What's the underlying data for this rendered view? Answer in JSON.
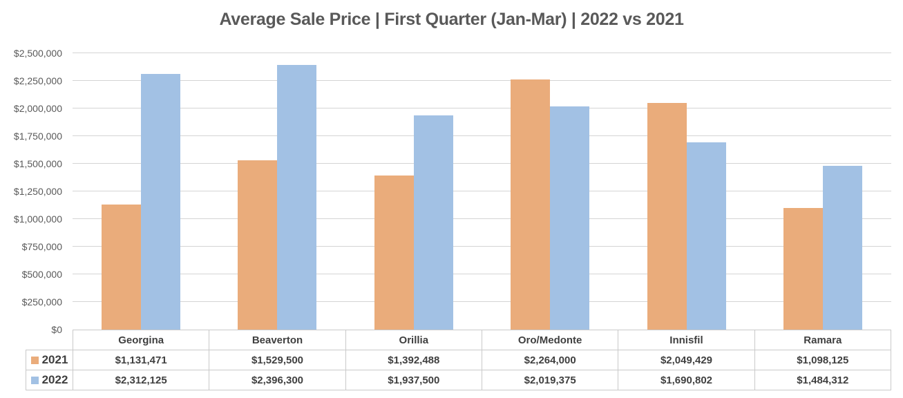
{
  "chart_data": {
    "type": "bar",
    "title": "Average Sale Price | First Quarter (Jan-Mar)  | 2022 vs 2021",
    "categories": [
      "Georgina",
      "Beaverton",
      "Orillia",
      "Oro/Medonte",
      "Innisfil",
      "Ramara"
    ],
    "series": [
      {
        "name": "2021",
        "color": "#EAAC7B",
        "values": [
          1131471,
          1529500,
          1392488,
          2264000,
          2049429,
          1098125
        ],
        "labels": [
          "$1,131,471",
          "$1,529,500",
          "$1,392,488",
          "$2,264,000",
          "$2,049,429",
          "$1,098,125"
        ]
      },
      {
        "name": "2022",
        "color": "#A2C1E4",
        "values": [
          2312125,
          2396300,
          1937500,
          2019375,
          1690802,
          1484312
        ],
        "labels": [
          "$2,312,125",
          "$2,396,300",
          "$1,937,500",
          "$2,019,375",
          "$1,690,802",
          "$1,484,312"
        ]
      }
    ],
    "ylim": [
      0,
      2500000
    ],
    "y_ticks": [
      {
        "value": 0,
        "label": "$0"
      },
      {
        "value": 250000,
        "label": "$250,000"
      },
      {
        "value": 500000,
        "label": "$500,000"
      },
      {
        "value": 750000,
        "label": "$750,000"
      },
      {
        "value": 1000000,
        "label": "$1,000,000"
      },
      {
        "value": 1250000,
        "label": "$1,250,000"
      },
      {
        "value": 1500000,
        "label": "$1,500,000"
      },
      {
        "value": 1750000,
        "label": "$1,750,000"
      },
      {
        "value": 2000000,
        "label": "$2,000,000"
      },
      {
        "value": 2250000,
        "label": "$2,250,000"
      },
      {
        "value": 2500000,
        "label": "$2,500,000"
      }
    ],
    "grid": true,
    "legend_position": "table-rows-left"
  },
  "colors": {
    "title_text": "#595959",
    "axis_text": "#595959",
    "table_text": "#3F3F3F",
    "gridline": "#D4D4D4",
    "table_border": "#C9C9C9",
    "background": "#FFFFFF"
  }
}
